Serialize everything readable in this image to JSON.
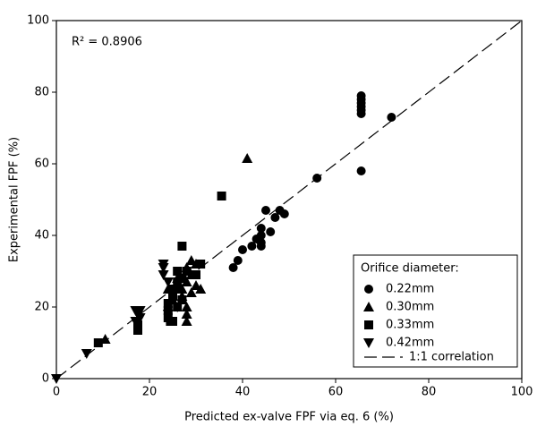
{
  "chart_data": {
    "type": "scatter",
    "x_label": "Predicted ex-valve FPF via eq. 6 (%)",
    "y_label": "Experimental FPF (%)",
    "annotation": "R² = 0.8906",
    "legend_title": "Orifice diameter:",
    "legend_position": "lower right",
    "xlim": [
      0,
      100
    ],
    "ylim": [
      0,
      100
    ],
    "xticks": [
      0,
      20,
      40,
      60,
      80,
      100
    ],
    "yticks": [
      0,
      20,
      40,
      60,
      80,
      100
    ],
    "reference_line": {
      "name": "1:1 correlation",
      "color": "#000000"
    },
    "series": [
      {
        "name": "0.22mm",
        "marker": "circle",
        "color": "#000000",
        "x": [
          65.5,
          65.5,
          65.5,
          65.5,
          65.5,
          65.5,
          72,
          65.5,
          56,
          45,
          48,
          49,
          47,
          46,
          44,
          44,
          44,
          44,
          42,
          40,
          39,
          38,
          43
        ],
        "y": [
          79,
          78,
          77,
          76,
          75,
          74,
          73,
          58,
          56,
          47,
          47,
          46,
          45,
          41,
          42,
          40,
          38,
          37,
          37,
          36,
          33,
          31,
          39
        ]
      },
      {
        "name": "0.30mm",
        "marker": "triangle-up",
        "color": "#000000",
        "x": [
          41,
          10.5,
          28,
          29,
          30,
          28,
          27,
          28,
          28,
          28,
          30,
          29,
          31,
          26,
          25,
          24,
          27,
          29
        ],
        "y": [
          61.5,
          11,
          31,
          33,
          32,
          27,
          25,
          20,
          18,
          16,
          26,
          24,
          25,
          28,
          22,
          25,
          23,
          29
        ]
      },
      {
        "name": "0.33mm",
        "marker": "square",
        "color": "#000000",
        "x": [
          35.5,
          27,
          9,
          17.5,
          17.5,
          24.5,
          24,
          24,
          24,
          25,
          26,
          26,
          26,
          27,
          26,
          27,
          31,
          30,
          28,
          25
        ],
        "y": [
          51,
          37,
          10,
          13.5,
          15,
          16,
          17,
          19,
          21,
          23,
          25,
          27,
          30,
          28,
          20,
          22,
          32,
          29,
          30,
          16
        ]
      },
      {
        "name": "0.42mm",
        "marker": "triangle-down",
        "color": "#000000",
        "x": [
          0,
          6.5,
          17,
          17.5,
          18,
          17,
          23,
          23,
          23,
          24,
          25,
          25,
          26,
          24,
          18,
          17.5
        ],
        "y": [
          0,
          7,
          19,
          18,
          17,
          16,
          32,
          31,
          29,
          27,
          25,
          24,
          20,
          18,
          19,
          18.5
        ]
      }
    ]
  }
}
